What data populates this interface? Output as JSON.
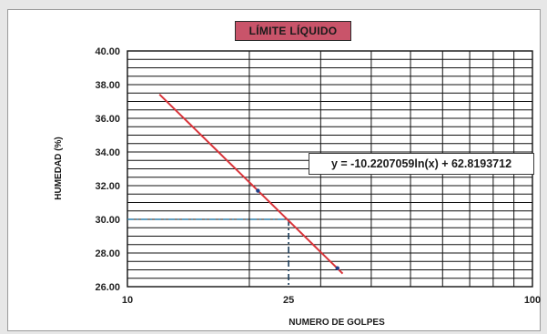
{
  "chart_data": {
    "type": "scatter",
    "title": "LÍMITE LÍQUIDO",
    "xlabel": "NUMERO DE GOLPES",
    "ylabel": "HUMEDAD (%)",
    "x_scale": "log",
    "xlim": [
      10,
      100
    ],
    "ylim": [
      26.0,
      40.0
    ],
    "x_ticks": [
      "10",
      "25",
      "100"
    ],
    "y_ticks": [
      "40.00",
      "38.00",
      "36.00",
      "34.00",
      "32.00",
      "30.00",
      "28.00",
      "26.00"
    ],
    "grid": true,
    "series": [
      {
        "name": "",
        "x": [
          21,
          33
        ],
        "y": [
          31.7,
          27.1
        ]
      }
    ],
    "trendline": {
      "equation": "y = -10.2207059ln(x) + 62.8193712",
      "slope": -10.2207059,
      "intercept": 62.8193712,
      "x_range": [
        12,
        34
      ]
    },
    "reference": {
      "x": 25,
      "y": 30.0
    }
  },
  "colors": {
    "trend": "#d9343a",
    "reference": "#2f7fa8",
    "grid": "#111111",
    "title_bg": "#c9546a"
  }
}
